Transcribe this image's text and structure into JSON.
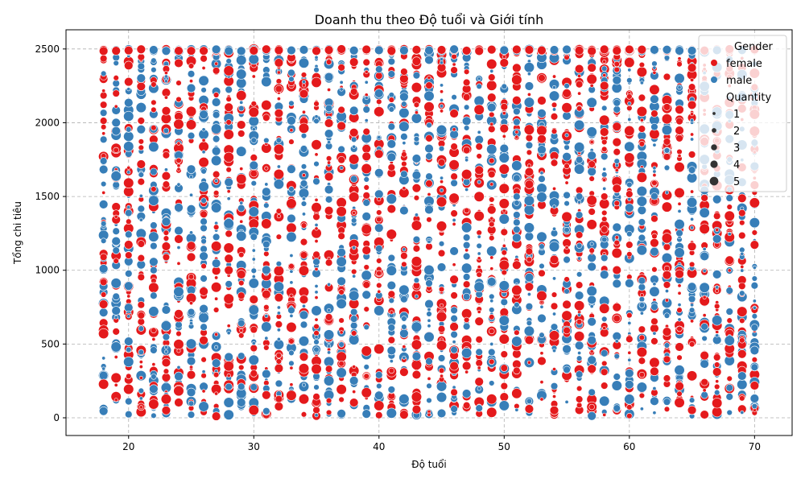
{
  "chart_data": {
    "type": "scatter",
    "title": "Doanh thu theo Độ tuổi và Giới tính",
    "xlabel": "Độ tuổi",
    "ylabel": "Tổng chi tiêu",
    "xlim": [
      15,
      73
    ],
    "ylim": [
      -120,
      2630
    ],
    "xticks": [
      20,
      30,
      40,
      50,
      60,
      70
    ],
    "yticks": [
      0,
      500,
      1000,
      1500,
      2000,
      2500
    ],
    "grid": true,
    "grid_style": "dashed",
    "legend_position": "top-right",
    "x_values": [
      18,
      19,
      20,
      21,
      22,
      23,
      24,
      25,
      26,
      27,
      28,
      29,
      30,
      31,
      32,
      33,
      34,
      35,
      36,
      37,
      38,
      39,
      40,
      41,
      42,
      43,
      44,
      45,
      46,
      47,
      48,
      49,
      50,
      51,
      52,
      53,
      54,
      55,
      56,
      57,
      58,
      59,
      60,
      61,
      62,
      63,
      64,
      65,
      66,
      67,
      68,
      69,
      70
    ],
    "y_range": [
      10,
      2500
    ],
    "hue_legend_title": "Gender",
    "series": [
      {
        "name": "female",
        "color": "#e41a1c"
      },
      {
        "name": "male",
        "color": "#377eb8"
      }
    ],
    "size_legend_title": "Quantity",
    "size_levels": [
      1,
      2,
      3,
      4,
      5
    ]
  }
}
